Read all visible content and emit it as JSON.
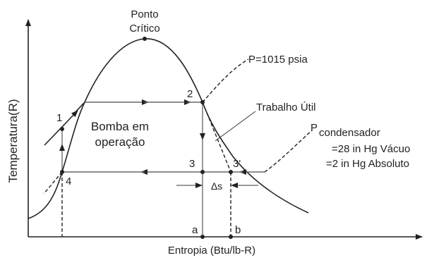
{
  "title": {
    "line1": "Ponto",
    "line2": "Crítico"
  },
  "axes": {
    "y_label": "Temperatura(R)",
    "x_label": "Entropia (Btu/lb-R)"
  },
  "annotations": {
    "pressure_high": "P=1015 psia",
    "work": "Trabalho Útil",
    "pump_line1": "Bomba em",
    "pump_line2": "operação",
    "condenser_p": "P",
    "condenser_sub": "condensador",
    "condenser_line1": "=28 in Hg Vácuo",
    "condenser_line2": "=2 in Hg Absoluto",
    "delta_s": "Δs"
  },
  "points": {
    "p1": "1",
    "p2": "2",
    "p3": "3",
    "p3prime": "3'",
    "p4": "4",
    "a": "a",
    "b": "b"
  }
}
